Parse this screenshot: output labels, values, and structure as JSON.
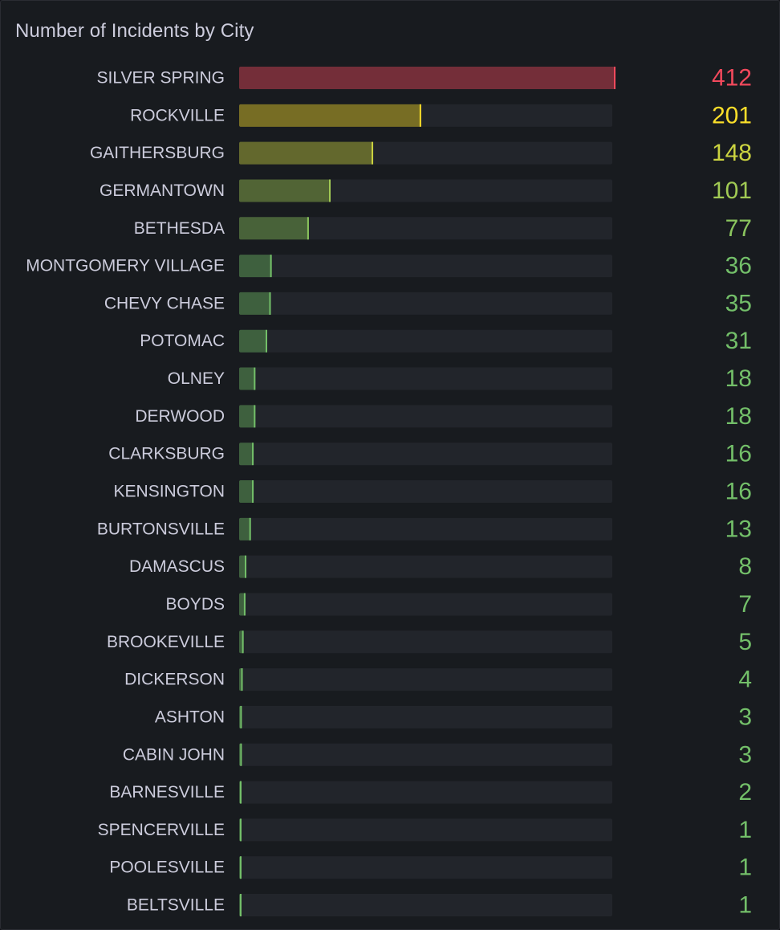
{
  "panel": {
    "title": "Number of Incidents by City"
  },
  "colors": {
    "background": "#181b1f",
    "track": "#22252b",
    "label": "#ccccdc",
    "red": "#f2495c",
    "yellow": "#fade2a",
    "green": "#73bf69"
  },
  "chart_data": {
    "type": "bar",
    "orientation": "horizontal",
    "display": "bar-gauge",
    "title": "Number of Incidents by City",
    "categories": [
      "SILVER SPRING",
      "ROCKVILLE",
      "GAITHERSBURG",
      "GERMANTOWN",
      "BETHESDA",
      "MONTGOMERY VILLAGE",
      "CHEVY CHASE",
      "POTOMAC",
      "OLNEY",
      "DERWOOD",
      "CLARKSBURG",
      "KENSINGTON",
      "BURTONSVILLE",
      "DAMASCUS",
      "BOYDS",
      "BROOKEVILLE",
      "DICKERSON",
      "ASHTON",
      "CABIN JOHN",
      "BARNESVILLE",
      "SPENCERVILLE",
      "POOLESVILLE",
      "BELTSVILLE"
    ],
    "values": [
      412,
      201,
      148,
      101,
      77,
      36,
      35,
      31,
      18,
      18,
      16,
      16,
      13,
      8,
      7,
      5,
      4,
      3,
      3,
      2,
      1,
      1,
      1
    ],
    "xlim": [
      0,
      412
    ],
    "grid": false,
    "legend": "none"
  }
}
